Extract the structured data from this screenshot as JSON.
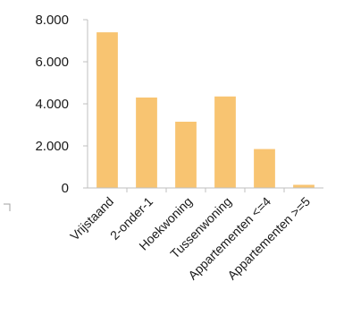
{
  "chart_data": {
    "type": "bar",
    "categories": [
      "Vrijstaand",
      "2-onder-1",
      "Hoekwoning",
      "Tussenwoning",
      "Appartementen <=4",
      "Appartementen >=5"
    ],
    "values": [
      7400,
      4300,
      3150,
      4350,
      1850,
      150
    ],
    "y_tick_labels": [
      "0",
      "2.000",
      "4.000",
      "6.000",
      "8.000"
    ],
    "y_ticks": [
      0,
      2000,
      4000,
      6000,
      8000
    ],
    "ylim": [
      0,
      8000
    ],
    "title": "",
    "xlabel": "",
    "ylabel": "",
    "grid": false,
    "bar_color": "#F8C471"
  }
}
